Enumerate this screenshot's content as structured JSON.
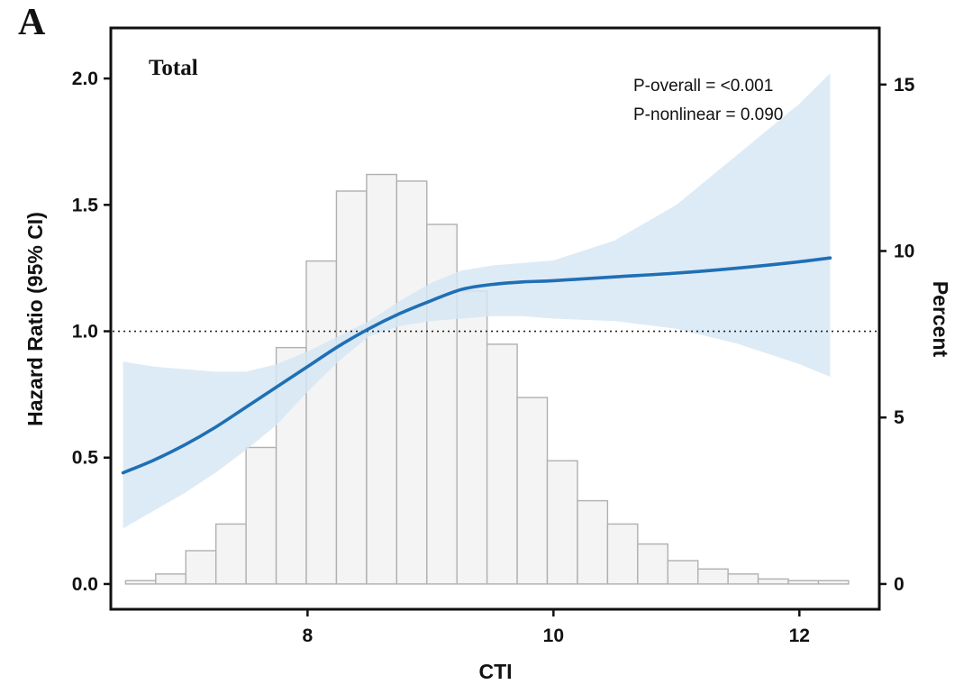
{
  "panel_label": "A",
  "chart_data": {
    "type": "line",
    "title": "Total",
    "xlabel": "CTI",
    "ylabel": "Hazard Ratio (95% CI)",
    "y2label": "Percent",
    "annotations": [
      "P-overall = <0.001",
      "P-nonlinear = 0.090"
    ],
    "xlim": [
      6.4,
      12.65
    ],
    "ylim": [
      -0.1,
      2.2
    ],
    "y2lim": [
      -0.76,
      16.7
    ],
    "x_ticks": [
      "8",
      "10",
      "12"
    ],
    "y_ticks": [
      "0.0",
      "0.5",
      "1.0",
      "1.5",
      "2.0"
    ],
    "y2_ticks": [
      "0",
      "5",
      "10",
      "15"
    ],
    "reference_line": 1.0,
    "curve_color": "#1f6fb5",
    "band_color": "#d6e6f4",
    "bar_fill": "#f4f4f4",
    "bar_edge": "#b0b0b0",
    "hr_curve": {
      "x": [
        6.5,
        6.75,
        7.0,
        7.25,
        7.5,
        7.75,
        8.0,
        8.25,
        8.5,
        8.75,
        9.0,
        9.25,
        9.5,
        9.75,
        10.0,
        10.5,
        11.0,
        11.5,
        12.0,
        12.25
      ],
      "y": [
        0.44,
        0.49,
        0.55,
        0.62,
        0.7,
        0.78,
        0.86,
        0.94,
        1.01,
        1.07,
        1.12,
        1.165,
        1.185,
        1.195,
        1.2,
        1.215,
        1.23,
        1.25,
        1.275,
        1.29
      ]
    },
    "ci_upper": {
      "x": [
        6.5,
        6.75,
        7.0,
        7.25,
        7.5,
        7.75,
        8.0,
        8.25,
        8.5,
        8.75,
        9.0,
        9.25,
        9.5,
        9.75,
        10.0,
        10.5,
        11.0,
        11.5,
        12.0,
        12.25
      ],
      "y": [
        0.88,
        0.86,
        0.85,
        0.84,
        0.84,
        0.87,
        0.92,
        0.98,
        1.04,
        1.12,
        1.19,
        1.24,
        1.26,
        1.27,
        1.28,
        1.36,
        1.5,
        1.7,
        1.9,
        2.02
      ]
    },
    "ci_lower": {
      "x": [
        6.5,
        6.75,
        7.0,
        7.25,
        7.5,
        7.75,
        8.0,
        8.25,
        8.5,
        8.75,
        9.0,
        9.25,
        9.5,
        9.75,
        10.0,
        10.5,
        11.0,
        11.5,
        12.0,
        12.25
      ],
      "y": [
        0.22,
        0.29,
        0.36,
        0.44,
        0.53,
        0.63,
        0.76,
        0.88,
        0.98,
        1.02,
        1.04,
        1.05,
        1.06,
        1.06,
        1.05,
        1.04,
        1.01,
        0.95,
        0.87,
        0.82
      ]
    },
    "histogram": {
      "bin_width": 0.245,
      "bin_starts": [
        6.52,
        6.765,
        7.01,
        7.255,
        7.5,
        7.745,
        7.99,
        8.235,
        8.48,
        8.725,
        8.97,
        9.215,
        9.46,
        9.705,
        9.95,
        10.195,
        10.44,
        10.685,
        10.93,
        11.175,
        11.42,
        11.665,
        11.91,
        12.155
      ],
      "percent": [
        0.1,
        0.3,
        1.0,
        1.8,
        4.1,
        7.1,
        9.7,
        11.8,
        12.3,
        12.1,
        10.8,
        8.8,
        7.2,
        5.6,
        3.7,
        2.5,
        1.8,
        1.2,
        0.7,
        0.45,
        0.3,
        0.15,
        0.1,
        0.1
      ]
    }
  }
}
